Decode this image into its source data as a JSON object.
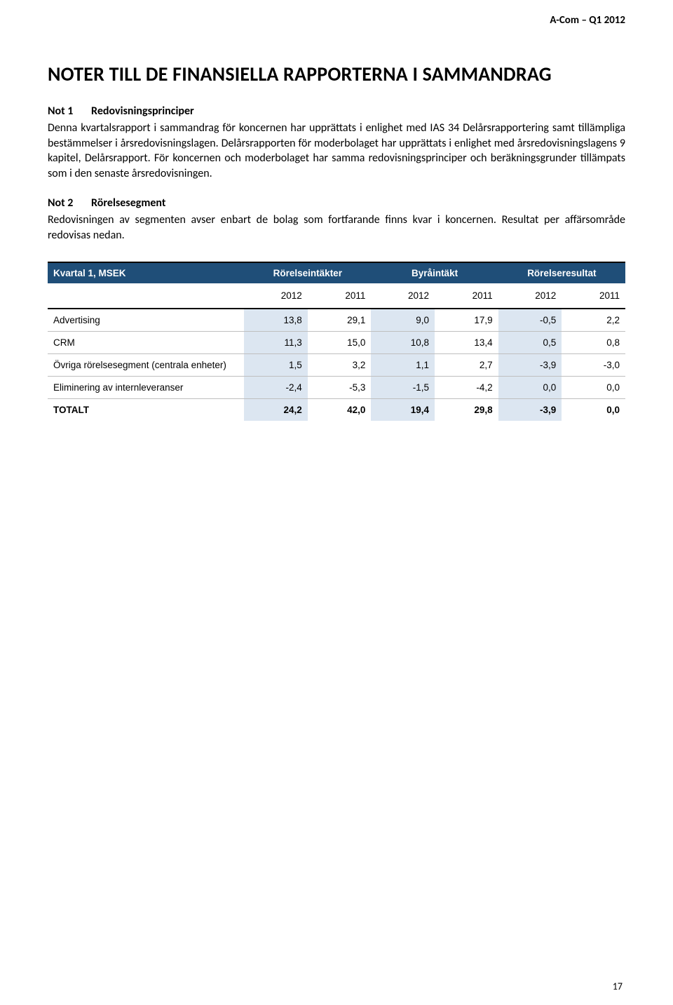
{
  "header": {
    "right": "A-Com – Q1 2012"
  },
  "title": "NOTER TILL DE FINANSIELLA RAPPORTERNA I SAMMANDRAG",
  "note1": {
    "label": "Not 1",
    "title": "Redovisningsprinciper",
    "body": "Denna kvartalsrapport i sammandrag för koncernen har upprättats i enlighet med IAS 34 Delårsrapportering samt tillämpliga bestämmelser i årsredovisningslagen. Delårsrapporten för moderbolaget har upprättats i enlighet med årsredovisningslagens 9 kapitel, Delårsrapport. För koncernen och moderbolaget har samma redovisningsprinciper och beräkningsgrunder tillämpats som i den senaste årsredovisningen."
  },
  "note2": {
    "label": "Not 2",
    "title": "Rörelsesegment",
    "body": "Redovisningen av segmenten avser enbart de bolag som fortfarande finns kvar i koncernen. Resultat per affärsområde redovisas nedan."
  },
  "table": {
    "caption": "Kvartal 1, MSEK",
    "group_headers": [
      "Rörelseintäkter",
      "Byråintäkt",
      "Rörelseresultat"
    ],
    "year_headers": [
      "2012",
      "2011",
      "2012",
      "2011",
      "2012",
      "2011"
    ],
    "rows": [
      {
        "label": "Advertising",
        "vals": [
          "13,8",
          "29,1",
          "9,0",
          "17,9",
          "-0,5",
          "2,2"
        ]
      },
      {
        "label": "CRM",
        "vals": [
          "11,3",
          "15,0",
          "10,8",
          "13,4",
          "0,5",
          "0,8"
        ]
      },
      {
        "label": "Övriga rörelsesegment (centrala enheter)",
        "vals": [
          "1,5",
          "3,2",
          "1,1",
          "2,7",
          "-3,9",
          "-3,0"
        ]
      },
      {
        "label": "Eliminering av internleveranser",
        "vals": [
          "-2,4",
          "-5,3",
          "-1,5",
          "-4,2",
          "0,0",
          "0,0"
        ]
      }
    ],
    "total": {
      "label": "TOTALT",
      "vals": [
        "24,2",
        "42,0",
        "19,4",
        "29,8",
        "-3,9",
        "0,0"
      ]
    },
    "colors": {
      "header_bg": "#1f4e78",
      "header_fg": "#ffffff",
      "shade_bg": "#dce6f1",
      "border": "#bfbfbf"
    }
  },
  "page_number": "17"
}
